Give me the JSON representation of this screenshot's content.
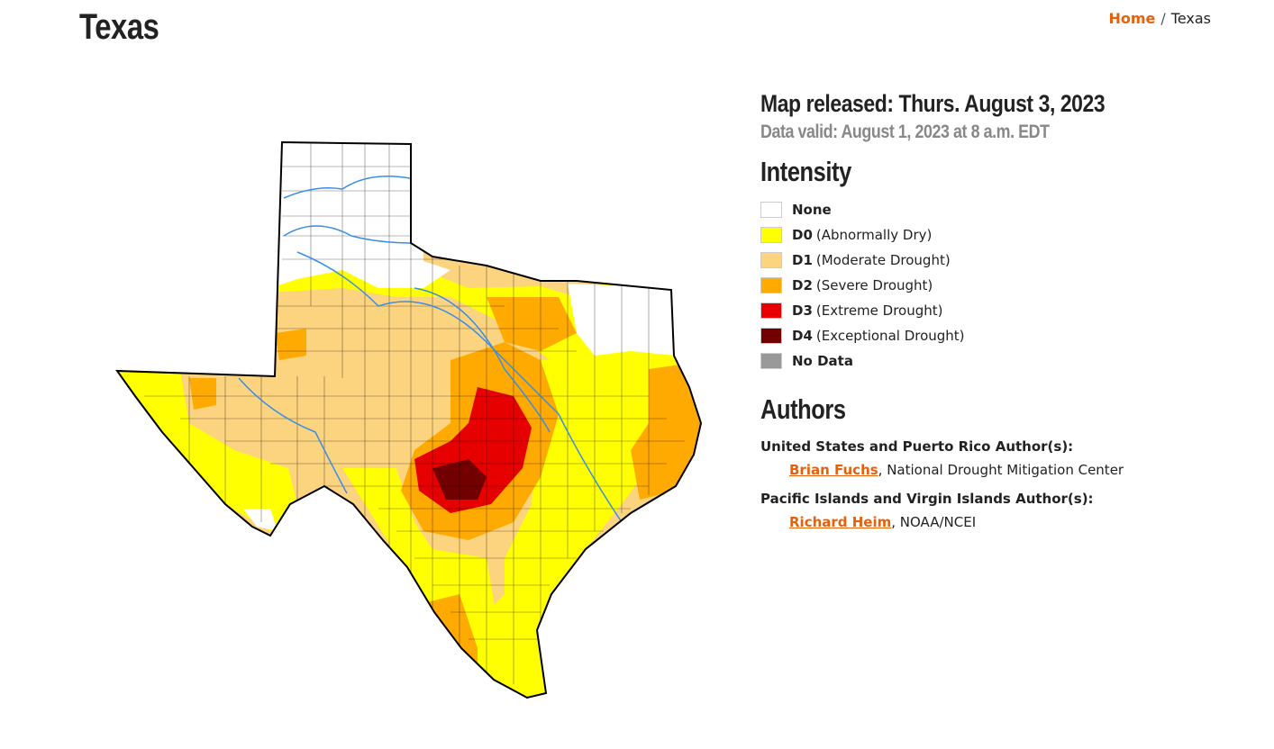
{
  "header": {
    "title": "Texas",
    "breadcrumb": [
      "Home",
      "Texas"
    ],
    "separator": "/"
  },
  "map": {
    "released": "Map released: Thurs. August 3, 2023",
    "valid": "Data valid: August 1, 2023 at 8 a.m. EDT"
  },
  "legend": {
    "title": "Intensity",
    "items": [
      {
        "code": "None",
        "color": "#ffffff"
      },
      {
        "code": "D0",
        "desc": "(Abnormally Dry)",
        "color": "#ffff00"
      },
      {
        "code": "D1",
        "desc": "(Moderate Drought)",
        "color": "#fcd37f"
      },
      {
        "code": "D2",
        "desc": "(Severe Drought)",
        "color": "#ffaa00"
      },
      {
        "code": "D3",
        "desc": "(Extreme Drought)",
        "color": "#e60000"
      },
      {
        "code": "D4",
        "desc": "(Exceptional Drought)",
        "color": "#730000"
      },
      {
        "code": "No Data",
        "color": "#999999"
      }
    ]
  },
  "authors": {
    "title": "Authors",
    "groups": [
      {
        "heading": "United States and Puerto Rico Author(s):",
        "name": "Brian Fuchs",
        "affiliation": ", National Drought Mitigation Center"
      },
      {
        "heading": "Pacific Islands and Virgin Islands Author(s):",
        "name": "Richard Heim",
        "affiliation": ", NOAA/NCEI"
      }
    ]
  }
}
